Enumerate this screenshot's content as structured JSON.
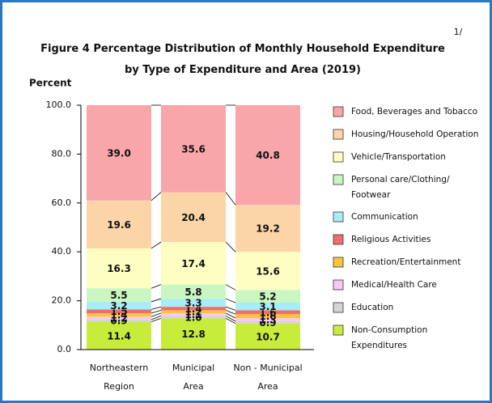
{
  "chart_data": {
    "type": "stacked_bar",
    "title": "Figure  4  Percentage Distribution of Monthly Household Expenditure\nby Type of Expenditure and Area (2019)",
    "note_marker": "1/",
    "y_label": "Percent",
    "categories": [
      "Northeastern\nRegion",
      "Municipal\nArea",
      "Non - Municipal\nArea"
    ],
    "ylim": [
      0,
      100
    ],
    "yticks": [
      {
        "value": 0,
        "label": "0.0"
      },
      {
        "value": 20,
        "label": "20.0"
      },
      {
        "value": 40,
        "label": "40.0"
      },
      {
        "value": 60,
        "label": "60.0"
      },
      {
        "value": 80,
        "label": "80.0"
      },
      {
        "value": 100,
        "label": "100.0"
      }
    ],
    "series": [
      {
        "name": "Non-Consumption\nExpenditures",
        "color": "#c8ec3c",
        "values": [
          11.4,
          12.8,
          10.7
        ],
        "value_labels": [
          "11.4",
          "12.8",
          "10.7"
        ]
      },
      {
        "name": "Education",
        "color": "#d4d4d4",
        "values": [
          0.9,
          1.0,
          0.9
        ],
        "value_labels": [
          "0.9",
          "1.0",
          "0.9"
        ]
      },
      {
        "name": "Medical/Health Care",
        "color": "#f8c8f2",
        "values": [
          1.2,
          1.1,
          1.3
        ],
        "value_labels": [
          "1.2",
          "1.1",
          "1.3"
        ]
      },
      {
        "name": "Recreation/Entertainment",
        "color": "#f8c43c",
        "values": [
          1.4,
          1.2,
          1.6
        ],
        "value_labels": [
          "1.4",
          "1.2",
          "1.6"
        ]
      },
      {
        "name": "Religious Activities",
        "color": "#ee6e6e",
        "values": [
          1.5,
          1.4,
          1.6
        ],
        "value_labels": [
          "1.5",
          "1.4",
          "1.6"
        ]
      },
      {
        "name": "Communication",
        "color": "#a8ecf8",
        "values": [
          3.2,
          3.3,
          3.1
        ],
        "value_labels": [
          "3.2",
          "3.3",
          "3.1"
        ]
      },
      {
        "name": "Personal care/Clothing/\nFootwear",
        "color": "#caf6c2",
        "values": [
          5.5,
          5.8,
          5.2
        ],
        "value_labels": [
          "5.5",
          "5.8",
          "5.2"
        ]
      },
      {
        "name": "Vehicle/Transportation",
        "color": "#fefec2",
        "values": [
          16.3,
          17.4,
          15.6
        ],
        "value_labels": [
          "16.3",
          "17.4",
          "15.6"
        ]
      },
      {
        "name": "Housing/Household Operation",
        "color": "#fbd4a8",
        "values": [
          19.6,
          20.4,
          19.2
        ],
        "value_labels": [
          "19.6",
          "20.4",
          "19.2"
        ]
      },
      {
        "name": "Food, Beverages and Tobacco",
        "color": "#f8a6aa",
        "values": [
          39.0,
          35.6,
          40.8
        ],
        "value_labels": [
          "39.0",
          "35.6",
          "40.8"
        ]
      }
    ]
  }
}
